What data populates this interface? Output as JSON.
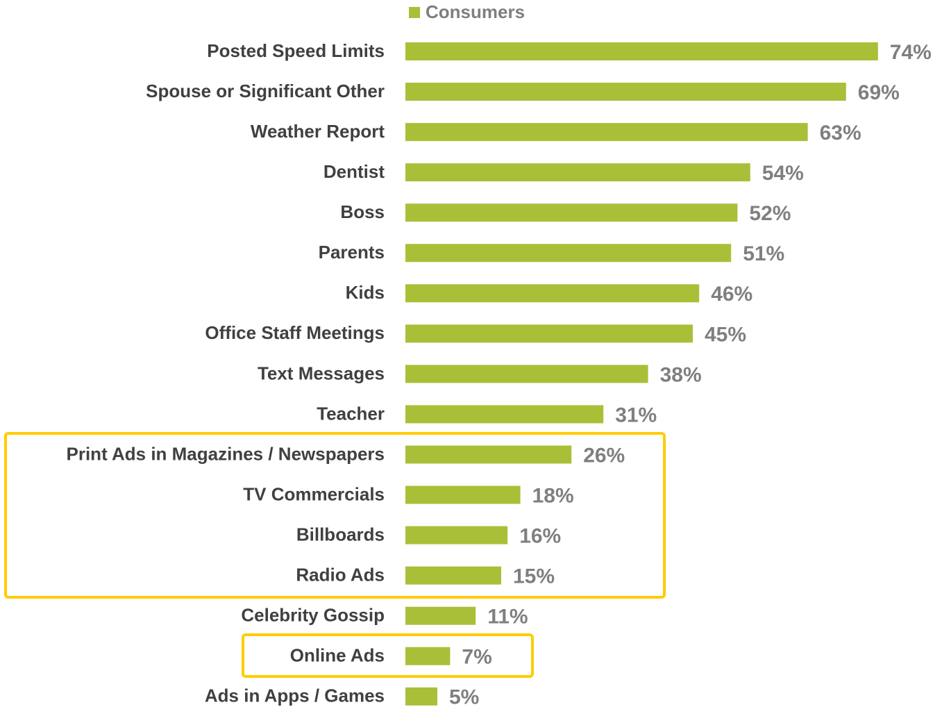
{
  "chart_data": {
    "type": "barh",
    "categories": [
      "Posted Speed Limits",
      "Spouse or Significant Other",
      "Weather Report",
      "Dentist",
      "Boss",
      "Parents",
      "Kids",
      "Office Staff Meetings",
      "Text Messages",
      "Teacher",
      "Print Ads in Magazines / Newspapers",
      "TV Commercials",
      "Billboards",
      "Radio Ads",
      "Celebrity Gossip",
      "Online Ads",
      "Ads in Apps / Games"
    ],
    "series": [
      {
        "name": "Consumers",
        "color": "#a9bf38",
        "values": [
          74,
          69,
          63,
          54,
          52,
          51,
          46,
          45,
          38,
          31,
          26,
          18,
          16,
          15,
          11,
          7,
          5
        ],
        "value_labels": [
          "74%",
          "69%",
          "63%",
          "54%",
          "52%",
          "51%",
          "46%",
          "45%",
          "38%",
          "31%",
          "26%",
          "18%",
          "16%",
          "15%",
          "11%",
          "7%",
          "5%"
        ]
      }
    ],
    "legend": "top"
  }
}
